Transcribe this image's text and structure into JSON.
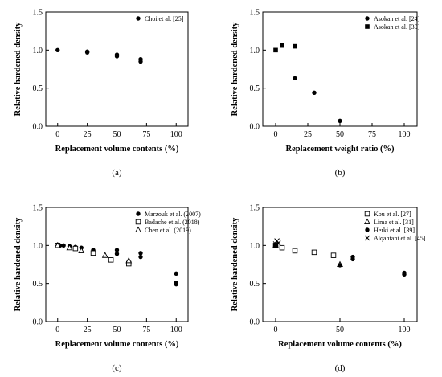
{
  "chart_data": [
    {
      "type": "scatter",
      "panel_label": "(a)",
      "xlabel": "Replacement volume contents (%)",
      "ylabel": "Relative hardened density",
      "xlim": [
        -10,
        110
      ],
      "ylim": [
        0,
        1.5
      ],
      "xticks": [
        0,
        25,
        50,
        75,
        100
      ],
      "yticks": [
        0,
        0.5,
        1.0,
        1.5
      ],
      "xtick_labels": [
        "0",
        "25",
        "50",
        "75",
        "100"
      ],
      "ytick_labels": [
        "0.0",
        "0.5",
        "1.0",
        "1.5"
      ],
      "legend_position": "top-right",
      "series": [
        {
          "name": "Choi et al. [25]",
          "marker": "circle-filled",
          "points": [
            [
              0,
              1.0
            ],
            [
              25,
              0.98
            ],
            [
              25,
              0.97
            ],
            [
              50,
              0.94
            ],
            [
              50,
              0.92
            ],
            [
              70,
              0.88
            ],
            [
              70,
              0.85
            ]
          ]
        }
      ]
    },
    {
      "type": "scatter",
      "panel_label": "(b)",
      "xlabel": "Replacement weight ratio (%)",
      "ylabel": "Relative hardened density",
      "xlim": [
        -10,
        110
      ],
      "ylim": [
        0,
        1.5
      ],
      "xticks": [
        0,
        25,
        50,
        75,
        100
      ],
      "yticks": [
        0,
        0.5,
        1.0,
        1.5
      ],
      "xtick_labels": [
        "0",
        "25",
        "50",
        "75",
        "100"
      ],
      "ytick_labels": [
        "0.0",
        "0.5",
        "1.0",
        "1.5"
      ],
      "legend_position": "top-right",
      "series": [
        {
          "name": "Asokan et al. [24]",
          "marker": "circle-filled",
          "points": [
            [
              15,
              0.63
            ],
            [
              30,
              0.44
            ],
            [
              50,
              0.07
            ]
          ]
        },
        {
          "name": "Asokan et al. [30]",
          "marker": "square-filled",
          "points": [
            [
              0,
              1.0
            ],
            [
              5,
              1.06
            ],
            [
              15,
              1.05
            ]
          ]
        }
      ]
    },
    {
      "type": "scatter",
      "panel_label": "(c)",
      "xlabel": "Replacement volume contents (%)",
      "ylabel": "Relative hardened density",
      "xlim": [
        -10,
        110
      ],
      "ylim": [
        0,
        1.5
      ],
      "xticks": [
        0,
        25,
        50,
        75,
        100
      ],
      "yticks": [
        0,
        0.5,
        1.0,
        1.5
      ],
      "xtick_labels": [
        "0",
        "25",
        "50",
        "75",
        "100"
      ],
      "ytick_labels": [
        "0.0",
        "0.5",
        "1.0",
        "1.5"
      ],
      "legend_position": "top-right",
      "series": [
        {
          "name": "Marzouk et al. (2007)",
          "marker": "circle-filled",
          "points": [
            [
              0,
              1.01
            ],
            [
              2,
              1.0
            ],
            [
              5,
              1.0
            ],
            [
              10,
              0.99
            ],
            [
              15,
              0.98
            ],
            [
              20,
              0.97
            ],
            [
              30,
              0.94
            ],
            [
              50,
              0.94
            ],
            [
              50,
              0.89
            ],
            [
              70,
              0.9
            ],
            [
              70,
              0.85
            ],
            [
              100,
              0.63
            ],
            [
              100,
              0.51
            ],
            [
              100,
              0.49
            ]
          ]
        },
        {
          "name": "Badache et al. (2018)",
          "marker": "square-open",
          "points": [
            [
              0,
              1.0
            ],
            [
              15,
              0.96
            ],
            [
              30,
              0.9
            ],
            [
              45,
              0.81
            ],
            [
              60,
              0.76
            ]
          ]
        },
        {
          "name": "Chen et al. (2019)",
          "marker": "triangle-open",
          "points": [
            [
              0,
              1.0
            ],
            [
              10,
              0.97
            ],
            [
              20,
              0.93
            ],
            [
              40,
              0.87
            ],
            [
              60,
              0.8
            ]
          ]
        }
      ]
    },
    {
      "type": "scatter",
      "panel_label": "(d)",
      "xlabel": "Replacement volume contents (%)",
      "ylabel": "Relative hardened density",
      "xlim": [
        -10,
        110
      ],
      "ylim": [
        0,
        1.5
      ],
      "xticks": [
        0,
        50,
        100
      ],
      "yticks": [
        0,
        0.5,
        1.0,
        1.5
      ],
      "xtick_labels": [
        "0",
        "50",
        "100"
      ],
      "ytick_labels": [
        "0.0",
        "0.5",
        "1.0",
        "1.5"
      ],
      "legend_position": "top-right",
      "series": [
        {
          "name": "Kou et al. [27]",
          "marker": "square-open",
          "points": [
            [
              0,
              1.0
            ],
            [
              5,
              0.97
            ],
            [
              15,
              0.93
            ],
            [
              30,
              0.91
            ],
            [
              45,
              0.87
            ]
          ]
        },
        {
          "name": "Lima et al. [31]",
          "marker": "triangle-open",
          "points": [
            [
              0,
              1.0
            ],
            [
              50,
              0.75
            ]
          ]
        },
        {
          "name": "Herki et al. [39]",
          "marker": "circle-filled",
          "points": [
            [
              0,
              1.01
            ],
            [
              0,
              0.99
            ],
            [
              50,
              0.74
            ],
            [
              60,
              0.85
            ],
            [
              60,
              0.82
            ],
            [
              100,
              0.64
            ],
            [
              100,
              0.62
            ]
          ]
        },
        {
          "name": "Alqahtani et al. [45]",
          "marker": "x",
          "points": [
            [
              0,
              1.02
            ],
            [
              1,
              1.06
            ],
            [
              2,
              1.03
            ]
          ]
        }
      ]
    }
  ]
}
